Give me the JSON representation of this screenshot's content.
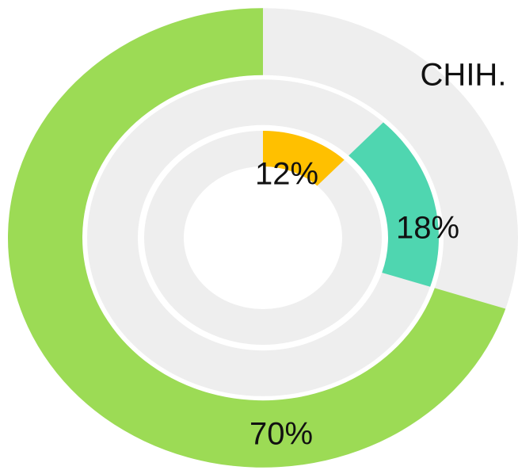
{
  "chart_data": {
    "type": "radial",
    "title": "CHIH.",
    "values": [
      12,
      18,
      70
    ],
    "value_labels": [
      "12%",
      "18%",
      "70%"
    ],
    "colors": [
      "#ffc000",
      "#4fd6b0",
      "#9cdb55"
    ],
    "track_color": "#eeeeee"
  }
}
